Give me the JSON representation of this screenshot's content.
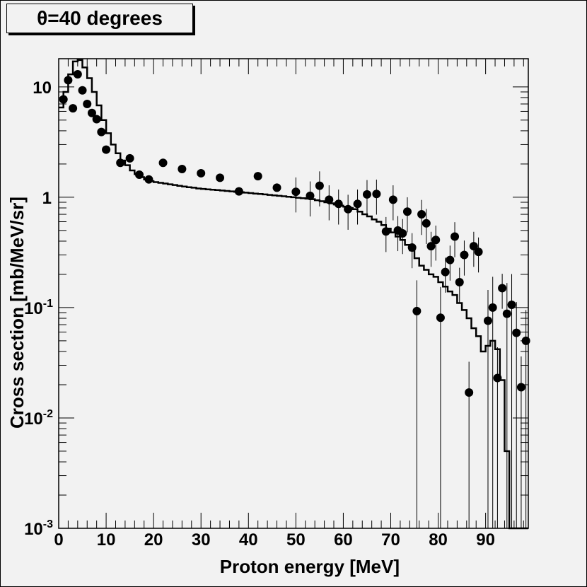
{
  "title": "θ=40 degrees",
  "chart_data": {
    "type": "scatter",
    "xlabel": "Proton energy [MeV]",
    "ylabel": "Cross section [mb/MeV/sr]",
    "xlim": [
      0,
      99
    ],
    "ylim": [
      0.001,
      18
    ],
    "y_scale": "log",
    "grid": false,
    "x_ticks": [
      {
        "value": 0,
        "label": "0"
      },
      {
        "value": 10,
        "label": "10"
      },
      {
        "value": 20,
        "label": "20"
      },
      {
        "value": 30,
        "label": "30"
      },
      {
        "value": 40,
        "label": "40"
      },
      {
        "value": 50,
        "label": "50"
      },
      {
        "value": 60,
        "label": "60"
      },
      {
        "value": 70,
        "label": "70"
      },
      {
        "value": 80,
        "label": "80"
      },
      {
        "value": 90,
        "label": "90"
      }
    ],
    "y_ticks": [
      {
        "value": 0.001,
        "base": "10",
        "exp": "-3"
      },
      {
        "value": 0.01,
        "base": "10",
        "exp": "-2"
      },
      {
        "value": 0.1,
        "base": "10",
        "exp": "-1"
      },
      {
        "value": 1,
        "base": "1",
        "exp": ""
      },
      {
        "value": 10,
        "base": "10",
        "exp": ""
      }
    ],
    "series": [
      {
        "kind": "points",
        "points": [
          {
            "x": 1,
            "y": 7.7
          },
          {
            "x": 2,
            "y": 11.5
          },
          {
            "x": 3,
            "y": 6.4
          },
          {
            "x": 4,
            "y": 13
          },
          {
            "x": 5,
            "y": 9.3
          },
          {
            "x": 6,
            "y": 7
          },
          {
            "x": 7,
            "y": 5.8
          },
          {
            "x": 8,
            "y": 5.1
          },
          {
            "x": 9,
            "y": 3.9
          },
          {
            "x": 10,
            "y": 2.7
          },
          {
            "x": 13,
            "y": 2.05
          },
          {
            "x": 15,
            "y": 2.25
          },
          {
            "x": 17,
            "y": 1.6
          },
          {
            "x": 19,
            "y": 1.45
          },
          {
            "x": 22,
            "y": 2.05
          },
          {
            "x": 26,
            "y": 1.8
          },
          {
            "x": 30,
            "y": 1.65
          },
          {
            "x": 34,
            "y": 1.5
          },
          {
            "x": 38,
            "y": 1.13
          },
          {
            "x": 42,
            "y": 1.55
          },
          {
            "x": 46,
            "y": 1.22
          },
          {
            "x": 50,
            "y": 1.12
          },
          {
            "x": 53,
            "y": 1.03
          },
          {
            "x": 55,
            "y": 1.27
          },
          {
            "x": 57,
            "y": 0.95
          },
          {
            "x": 59,
            "y": 0.87
          },
          {
            "x": 61,
            "y": 0.78
          },
          {
            "x": 63,
            "y": 0.87
          },
          {
            "x": 65,
            "y": 1.06
          },
          {
            "x": 67,
            "y": 1.07
          },
          {
            "x": 69,
            "y": 0.49
          },
          {
            "x": 70.5,
            "y": 0.95
          },
          {
            "x": 71.5,
            "y": 0.5
          },
          {
            "x": 72.5,
            "y": 0.47
          },
          {
            "x": 73.5,
            "y": 0.74
          },
          {
            "x": 74.5,
            "y": 0.35
          },
          {
            "x": 75.5,
            "y": 0.093
          },
          {
            "x": 76.5,
            "y": 0.7
          },
          {
            "x": 77.5,
            "y": 0.58
          },
          {
            "x": 78.5,
            "y": 0.36
          },
          {
            "x": 79.5,
            "y": 0.41
          },
          {
            "x": 80.5,
            "y": 0.081
          },
          {
            "x": 81.5,
            "y": 0.21
          },
          {
            "x": 82.5,
            "y": 0.27
          },
          {
            "x": 83.5,
            "y": 0.44
          },
          {
            "x": 84.5,
            "y": 0.17
          },
          {
            "x": 85.5,
            "y": 0.3
          },
          {
            "x": 86.5,
            "y": 0.017
          },
          {
            "x": 87.5,
            "y": 0.36
          },
          {
            "x": 88.5,
            "y": 0.32
          },
          {
            "x": 90.5,
            "y": 0.076
          },
          {
            "x": 91.5,
            "y": 0.1
          },
          {
            "x": 92.5,
            "y": 0.023
          },
          {
            "x": 93.5,
            "y": 0.15
          },
          {
            "x": 94.5,
            "y": 0.088
          },
          {
            "x": 95.5,
            "y": 0.106
          },
          {
            "x": 96.5,
            "y": 0.059
          },
          {
            "x": 97.5,
            "y": 0.019
          },
          {
            "x": 98.5,
            "y": 0.05
          }
        ]
      },
      {
        "kind": "histogram",
        "x": [
          0,
          1,
          2,
          3,
          4,
          5,
          6,
          7,
          8,
          9,
          10,
          11,
          12,
          13,
          14,
          15,
          16,
          17,
          18,
          19,
          20,
          21,
          22,
          23,
          24,
          25,
          26,
          27,
          28,
          29,
          30,
          31,
          32,
          33,
          34,
          35,
          36,
          37,
          38,
          39,
          40,
          41,
          42,
          43,
          44,
          45,
          46,
          47,
          48,
          49,
          50,
          51,
          52,
          53,
          54,
          55,
          56,
          57,
          58,
          59,
          60,
          61,
          62,
          63,
          64,
          65,
          66,
          67,
          68,
          69,
          70,
          71,
          72,
          73,
          74,
          75,
          76,
          77,
          78,
          79,
          80,
          81,
          82,
          83,
          84,
          85,
          86,
          87,
          88,
          89,
          90,
          91,
          92,
          93,
          94,
          95,
          96,
          97,
          98,
          99
        ],
        "y": [
          6.5,
          9,
          13,
          17,
          17.5,
          15,
          12,
          9,
          6.8,
          5,
          3.8,
          3,
          2.5,
          2.15,
          1.95,
          1.75,
          1.62,
          1.52,
          1.45,
          1.4,
          1.37,
          1.35,
          1.33,
          1.31,
          1.29,
          1.27,
          1.25,
          1.23,
          1.22,
          1.2,
          1.19,
          1.18,
          1.17,
          1.16,
          1.15,
          1.14,
          1.13,
          1.12,
          1.11,
          1.1,
          1.09,
          1.08,
          1.07,
          1.06,
          1.05,
          1.04,
          1.03,
          1.02,
          1.01,
          1,
          0.99,
          0.98,
          0.97,
          0.96,
          0.94,
          0.92,
          0.9,
          0.88,
          0.86,
          0.84,
          0.82,
          0.8,
          0.78,
          0.74,
          0.7,
          0.67,
          0.63,
          0.6,
          0.56,
          0.52,
          0.48,
          0.44,
          0.41,
          0.37,
          0.33,
          0.28,
          0.24,
          0.22,
          0.2,
          0.19,
          0.17,
          0.155,
          0.14,
          0.13,
          0.11,
          0.095,
          0.08,
          0.065,
          0.055,
          0.04,
          0.045,
          0.05,
          0.042,
          0.022,
          0.005,
          0.001,
          0.001,
          0.001,
          0.001
        ]
      }
    ]
  }
}
